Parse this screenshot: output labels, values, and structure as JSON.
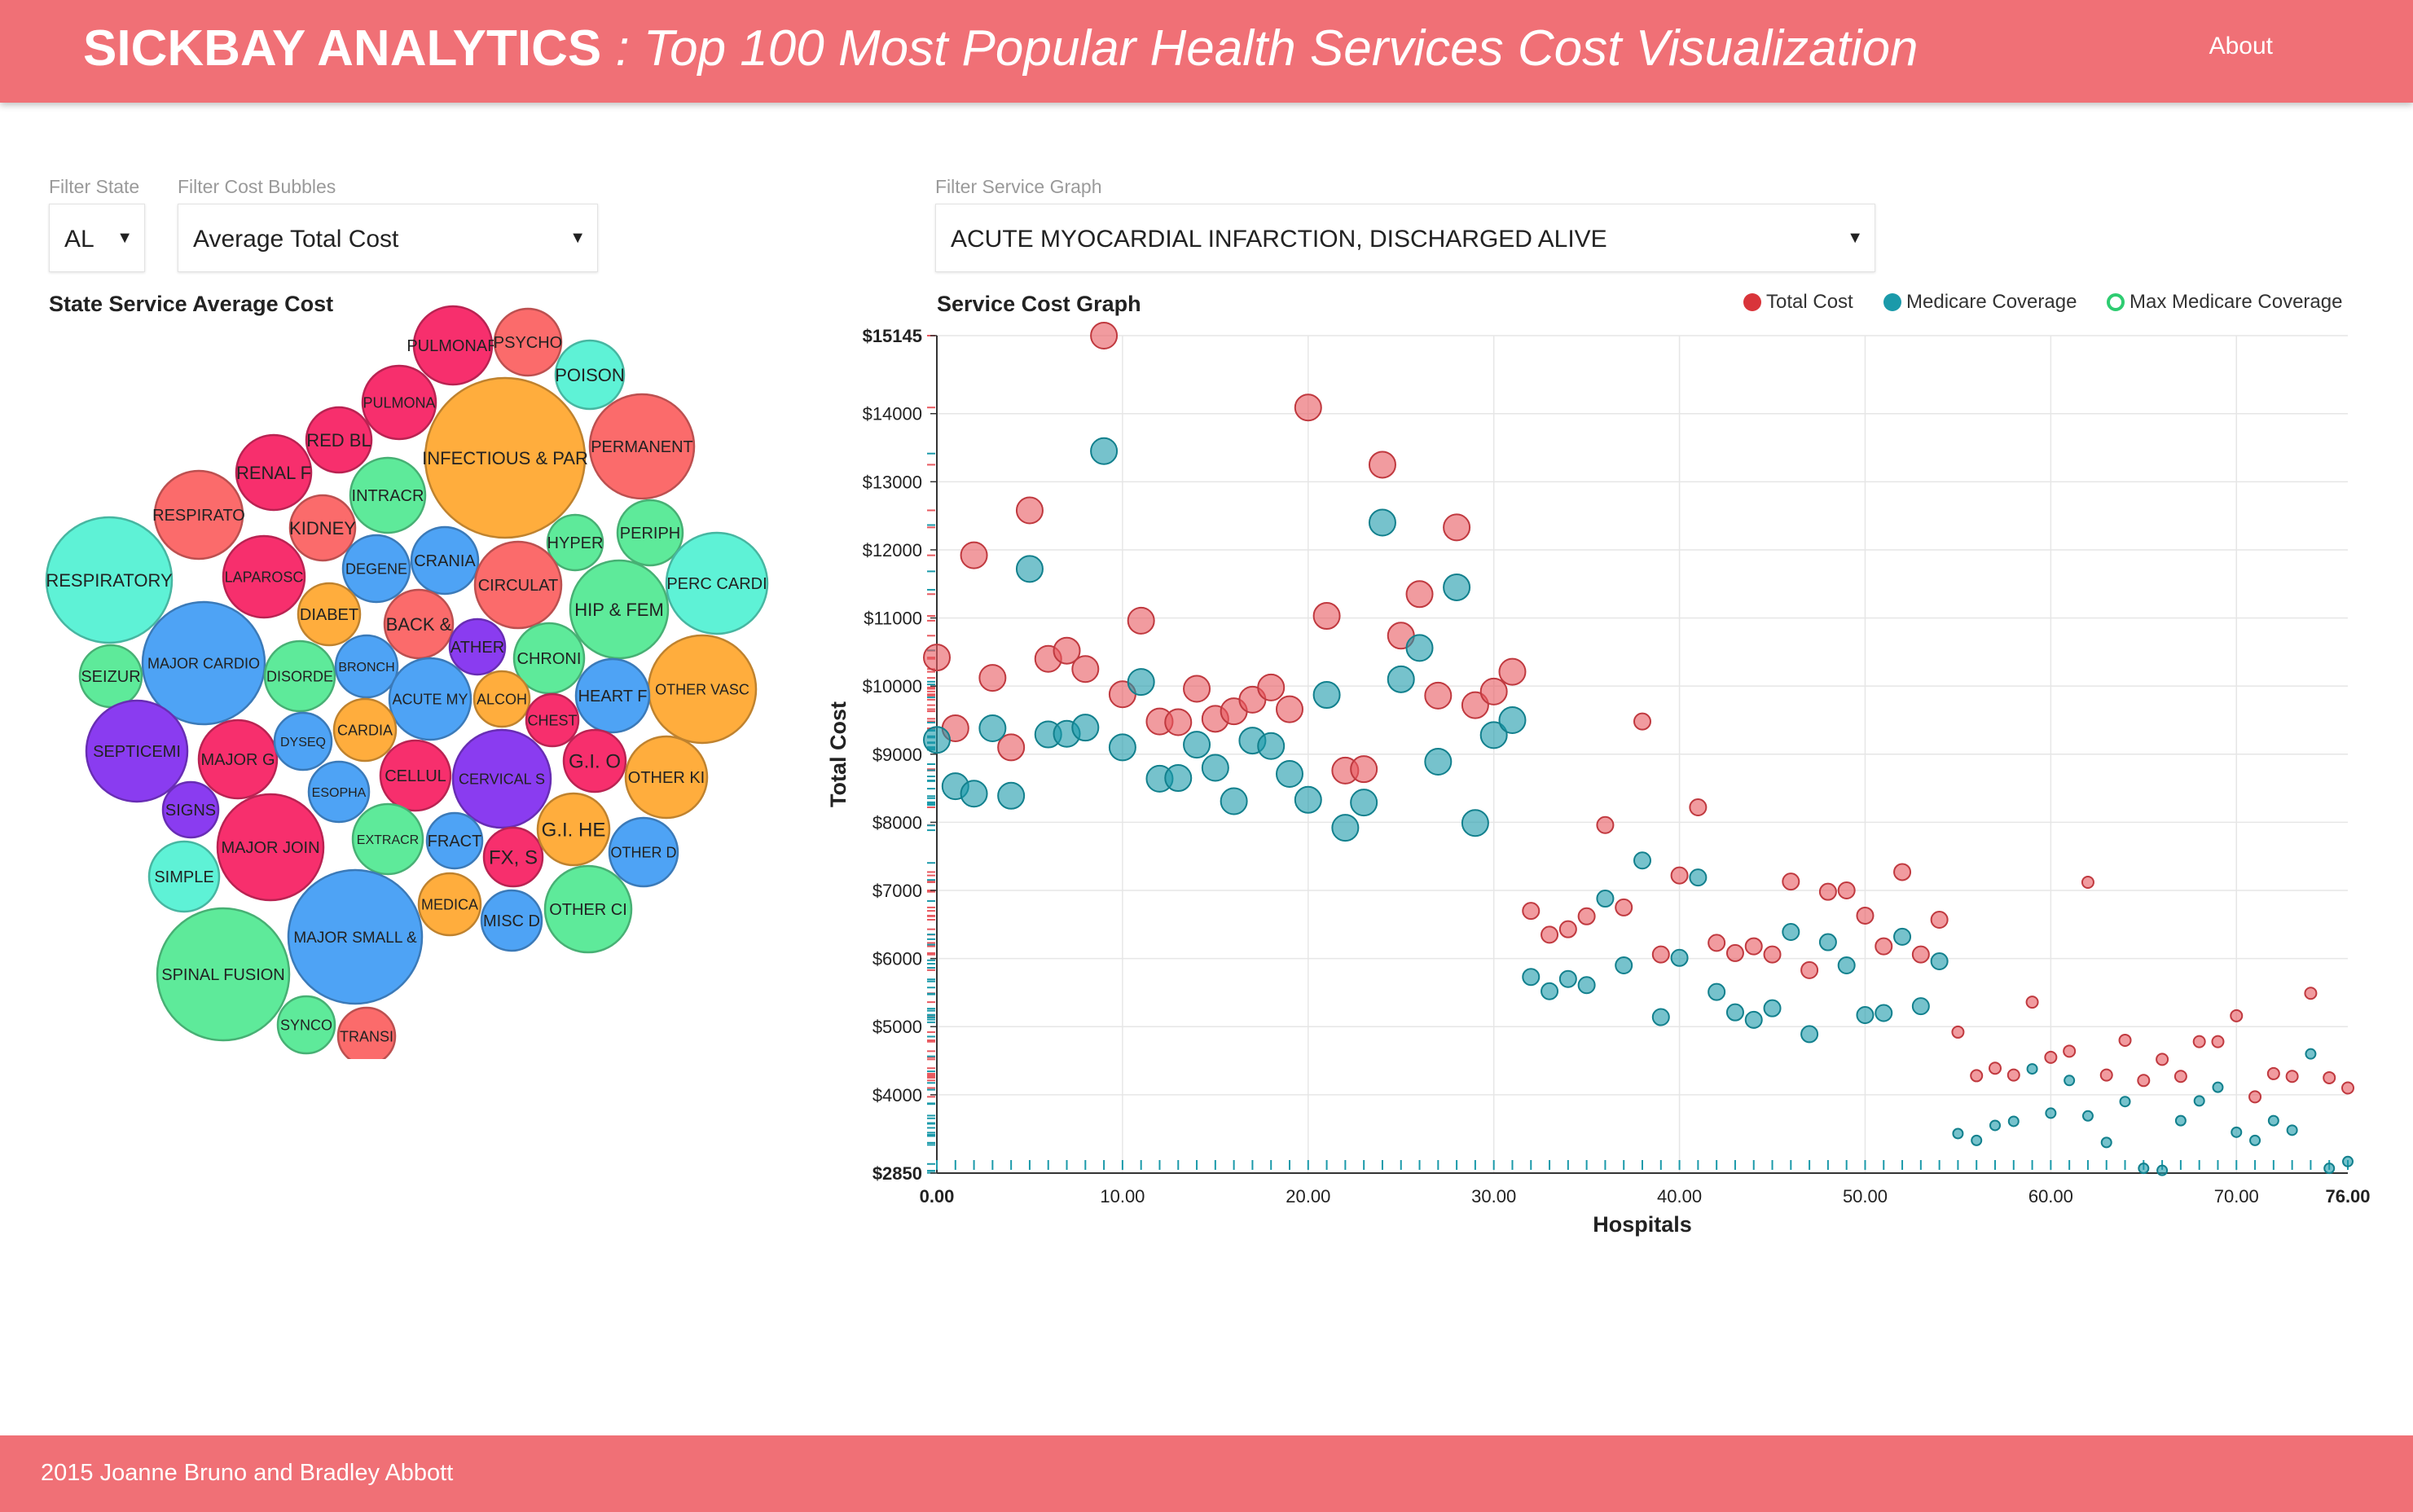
{
  "header": {
    "brand": "SICKBAY ANALYTICS",
    "subtitle": " : Top 100 Most Popular Health Services Cost Visualization",
    "about_label": "About"
  },
  "filters": {
    "state": {
      "label": "Filter State",
      "value": "AL"
    },
    "bubbles": {
      "label": "Filter Cost Bubbles",
      "value": "Average Total Cost"
    },
    "service": {
      "label": "Filter Service Graph",
      "value": "ACUTE MYOCARDIAL INFARCTION, DISCHARGED ALIVE"
    }
  },
  "bubble_section": {
    "title": "State Service Average Cost"
  },
  "graph_section": {
    "title": "Service Cost Graph"
  },
  "legend": {
    "total": "Total Cost",
    "medicare": "Medicare Coverage",
    "max": "Max Medicare Coverage"
  },
  "colors": {
    "total": "#e8595f",
    "medicare": "#1b9aaa",
    "max": "#2ecc71",
    "header": "#f07076"
  },
  "footer": {
    "text": "2015 Joanne Bruno and Bradley Abbott"
  },
  "bubbles": [
    {
      "label": "PULMONAR",
      "c": "#f72f6d"
    },
    {
      "label": "PSYCHO",
      "c": "#fb6b6b"
    },
    {
      "label": "POISON",
      "c": "#5ef2d6"
    },
    {
      "label": "PULMONA",
      "c": "#f72f6d"
    },
    {
      "label": "INFECTIOUS & PAR",
      "c": "#ffad3d"
    },
    {
      "label": "PERMANENT",
      "c": "#fb6b6b"
    },
    {
      "label": "RED BL",
      "c": "#f72f6d"
    },
    {
      "label": "RENAL F",
      "c": "#f72f6d"
    },
    {
      "label": "INTRACR",
      "c": "#5eea9a"
    },
    {
      "label": "RESPIRATO",
      "c": "#fb6b6b"
    },
    {
      "label": "KIDNEY",
      "c": "#fb6b6b"
    },
    {
      "label": "HYPER",
      "c": "#5eea9a"
    },
    {
      "label": "PERIPH",
      "c": "#5eea9a"
    },
    {
      "label": "RESPIRATORY",
      "c": "#5ef2d6"
    },
    {
      "label": "LAPAROSC",
      "c": "#f72f6d"
    },
    {
      "label": "DEGENE",
      "c": "#4ea3f5"
    },
    {
      "label": "CRANIA",
      "c": "#4ea3f5"
    },
    {
      "label": "CIRCULAT",
      "c": "#fb6b6b"
    },
    {
      "label": "PERC CARDI",
      "c": "#5ef2d6"
    },
    {
      "label": "DIABET",
      "c": "#ffad3d"
    },
    {
      "label": "HIP & FEM",
      "c": "#5eea9a"
    },
    {
      "label": "BACK &",
      "c": "#fb6b6b"
    },
    {
      "label": "MAJOR CARDIO",
      "c": "#4ea3f5"
    },
    {
      "label": "ATHER",
      "c": "#8a3cf0"
    },
    {
      "label": "SEIZUR",
      "c": "#5eea9a"
    },
    {
      "label": "DISORDE",
      "c": "#5eea9a"
    },
    {
      "label": "BRONCH",
      "c": "#4ea3f5"
    },
    {
      "label": "CHRONI",
      "c": "#5eea9a"
    },
    {
      "label": "OTHER VASC",
      "c": "#ffad3d"
    },
    {
      "label": "ACUTE MY",
      "c": "#4ea3f5"
    },
    {
      "label": "ALCOH",
      "c": "#ffad3d"
    },
    {
      "label": "HEART F",
      "c": "#4ea3f5"
    },
    {
      "label": "CHEST",
      "c": "#f72f6d"
    },
    {
      "label": "SEPTICEMI",
      "c": "#8a3cf0"
    },
    {
      "label": "MAJOR G",
      "c": "#f72f6d"
    },
    {
      "label": "DYSEQ",
      "c": "#4ea3f5"
    },
    {
      "label": "CARDIA",
      "c": "#ffad3d"
    },
    {
      "label": "G.I. O",
      "c": "#f72f6d"
    },
    {
      "label": "CELLUL",
      "c": "#f72f6d"
    },
    {
      "label": "CERVICAL S",
      "c": "#8a3cf0"
    },
    {
      "label": "OTHER KI",
      "c": "#ffad3d"
    },
    {
      "label": "SIGNS",
      "c": "#8a3cf0"
    },
    {
      "label": "ESOPHA",
      "c": "#4ea3f5"
    },
    {
      "label": "MAJOR JOIN",
      "c": "#f72f6d"
    },
    {
      "label": "EXTRACR",
      "c": "#5eea9a"
    },
    {
      "label": "FRACT",
      "c": "#4ea3f5"
    },
    {
      "label": "FX, S",
      "c": "#f72f6d"
    },
    {
      "label": "G.I. HE",
      "c": "#ffad3d"
    },
    {
      "label": "OTHER D",
      "c": "#4ea3f5"
    },
    {
      "label": "SIMPLE",
      "c": "#5ef2d6"
    },
    {
      "label": "MEDICA",
      "c": "#ffad3d"
    },
    {
      "label": "MISC D",
      "c": "#4ea3f5"
    },
    {
      "label": "OTHER CI",
      "c": "#5eea9a"
    },
    {
      "label": "SPINAL FUSION",
      "c": "#5eea9a"
    },
    {
      "label": "MAJOR SMALL &",
      "c": "#4ea3f5"
    },
    {
      "label": "SYNCO",
      "c": "#5eea9a"
    },
    {
      "label": "TRANSI",
      "c": "#fb6b6b"
    }
  ],
  "chart_data": {
    "type": "scatter",
    "title": "Service Cost Graph",
    "xlabel": "Hospitals",
    "ylabel": "Total Cost",
    "xlim": [
      0,
      76
    ],
    "ylim": [
      2850,
      15145
    ],
    "xticks": [
      0,
      10,
      20,
      30,
      40,
      50,
      60,
      70,
      76
    ],
    "xtick_labels": [
      "0.00",
      "10.00",
      "20.00",
      "30.00",
      "40.00",
      "50.00",
      "60.00",
      "70.00",
      "76.00"
    ],
    "yticks": [
      2850,
      4000,
      5000,
      6000,
      7000,
      8000,
      9000,
      10000,
      11000,
      12000,
      13000,
      14000,
      15145
    ],
    "ytick_labels": [
      "$2850",
      "$4000",
      "$5000",
      "$6000",
      "$7000",
      "$8000",
      "$9000",
      "$10000",
      "$11000",
      "$12000",
      "$13000",
      "$14000",
      "$15145"
    ],
    "series": [
      {
        "name": "Total Cost",
        "x": [
          0,
          1,
          2,
          3,
          4,
          5,
          6,
          7,
          8,
          9,
          10,
          11,
          12,
          13,
          14,
          15,
          16,
          17,
          18,
          19,
          20,
          21,
          22,
          23,
          24,
          25,
          26,
          27,
          28,
          29,
          30,
          31,
          32,
          33,
          34,
          35,
          36,
          37,
          38,
          39,
          40,
          41,
          42,
          43,
          44,
          45,
          46,
          47,
          48,
          49,
          50,
          51,
          52,
          53,
          54,
          55,
          56,
          57,
          58,
          59,
          60,
          61,
          62,
          63,
          64,
          65,
          66,
          67,
          68,
          69,
          70,
          71,
          72,
          73,
          74,
          75,
          76
        ],
        "values": [
          10420,
          9380,
          11920,
          10120,
          9100,
          12580,
          10400,
          10520,
          10250,
          15145,
          9880,
          10960,
          9480,
          9470,
          9960,
          9520,
          9630,
          9800,
          9980,
          9660,
          14090,
          11030,
          8760,
          8780,
          13250,
          10740,
          11350,
          9860,
          12330,
          9720,
          9920,
          10210,
          6700,
          6350,
          6430,
          6620,
          7960,
          6750,
          9480,
          6060,
          7220,
          8220,
          6230,
          6080,
          6180,
          6060,
          7130,
          5830,
          6980,
          7000,
          6630,
          6180,
          7270,
          6060,
          6570,
          4920,
          4280,
          4390,
          4290,
          5360,
          4550,
          4640,
          7120,
          4290,
          4800,
          4210,
          4520,
          4270,
          4780,
          4780,
          5160,
          3970,
          4310,
          4270,
          5490,
          4250,
          4100
        ]
      },
      {
        "name": "Medicare Coverage",
        "x": [
          0,
          1,
          2,
          3,
          4,
          5,
          6,
          7,
          8,
          9,
          10,
          11,
          12,
          13,
          14,
          15,
          16,
          17,
          18,
          19,
          20,
          21,
          22,
          23,
          24,
          25,
          26,
          27,
          28,
          29,
          30,
          31,
          32,
          33,
          34,
          35,
          36,
          37,
          38,
          39,
          40,
          41,
          42,
          43,
          44,
          45,
          46,
          47,
          48,
          49,
          50,
          51,
          52,
          53,
          54,
          55,
          56,
          57,
          58,
          59,
          60,
          61,
          62,
          63,
          64,
          65,
          66,
          67,
          68,
          69,
          70,
          71,
          72,
          73,
          74,
          75,
          76
        ],
        "values": [
          9210,
          8530,
          8420,
          9380,
          8390,
          11720,
          9290,
          9300,
          9390,
          13450,
          9100,
          10060,
          8640,
          8650,
          9140,
          8800,
          8310,
          9200,
          9120,
          8710,
          8330,
          9870,
          7920,
          8290,
          12400,
          10100,
          10560,
          8890,
          11450,
          7990,
          9280,
          9500,
          5730,
          5520,
          5700,
          5610,
          6880,
          5900,
          7440,
          5140,
          6010,
          7190,
          5510,
          5210,
          5100,
          5270,
          6390,
          4890,
          6240,
          5900,
          5170,
          5200,
          6320,
          5300,
          5960,
          3430,
          3330,
          3550,
          3610,
          4380,
          3730,
          4210,
          3690,
          3300,
          3900,
          2920,
          2890,
          3620,
          3910,
          4110,
          3450,
          3330,
          3620,
          3480,
          4600,
          2920,
          3020
        ]
      }
    ]
  }
}
